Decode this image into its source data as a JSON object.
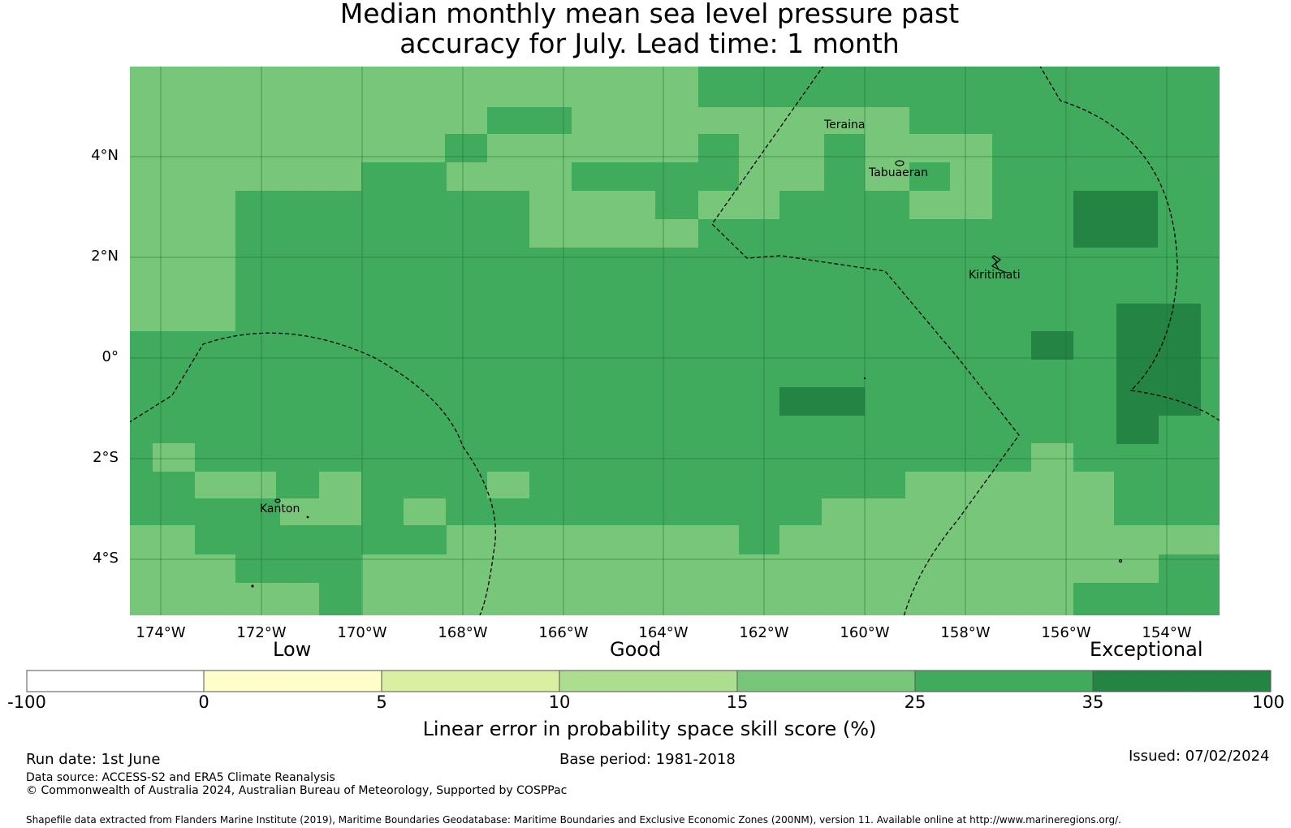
{
  "title_line1": "Median monthly mean sea level pressure past",
  "title_line2": "accuracy for July. Lead time: 1 month",
  "map": {
    "lat_labels": [
      "4°N",
      "2°N",
      "0°",
      "2°S",
      "4°S"
    ],
    "lon_labels": [
      "174°W",
      "172°W",
      "170°W",
      "168°W",
      "166°W",
      "164°W",
      "162°W",
      "160°W",
      "158°W",
      "156°W",
      "154°W"
    ],
    "places": [
      "Teraina",
      "Tabuaeran",
      "Kiritimati",
      "Kanton"
    ],
    "colors": {
      "light": "#78c679",
      "mid": "#41ab5d",
      "dark": "#238443"
    }
  },
  "colorbar": {
    "categories": [
      "Low",
      "Good",
      "Exceptional"
    ],
    "ticks": [
      "-100",
      "0",
      "5",
      "10",
      "15",
      "25",
      "35",
      "100"
    ],
    "colors": [
      "#ffffff",
      "#ffffcc",
      "#d9f0a3",
      "#addd8e",
      "#78c679",
      "#41ab5d",
      "#238443"
    ],
    "title": "Linear error in probability space skill score (%)"
  },
  "footer": {
    "run_date": "Run date: 1st June",
    "base_period": "Base period: 1981-2018",
    "issued": "Issued: 07/02/2024",
    "data_source": "Data source: ACCESS-S2 and ERA5 Climate Reanalysis",
    "copyright": "© Commonwealth of Australia 2024, Australian Bureau of Meteorology, Supported by COSPPac",
    "shapefile": "Shapefile data extracted from Flanders Marine Institute (2019), Maritime Boundaries Geodatabase: Maritime Boundaries and Exclusive Economic Zones (200NM), version 11. Available online at http://www.marineregions.org/."
  }
}
